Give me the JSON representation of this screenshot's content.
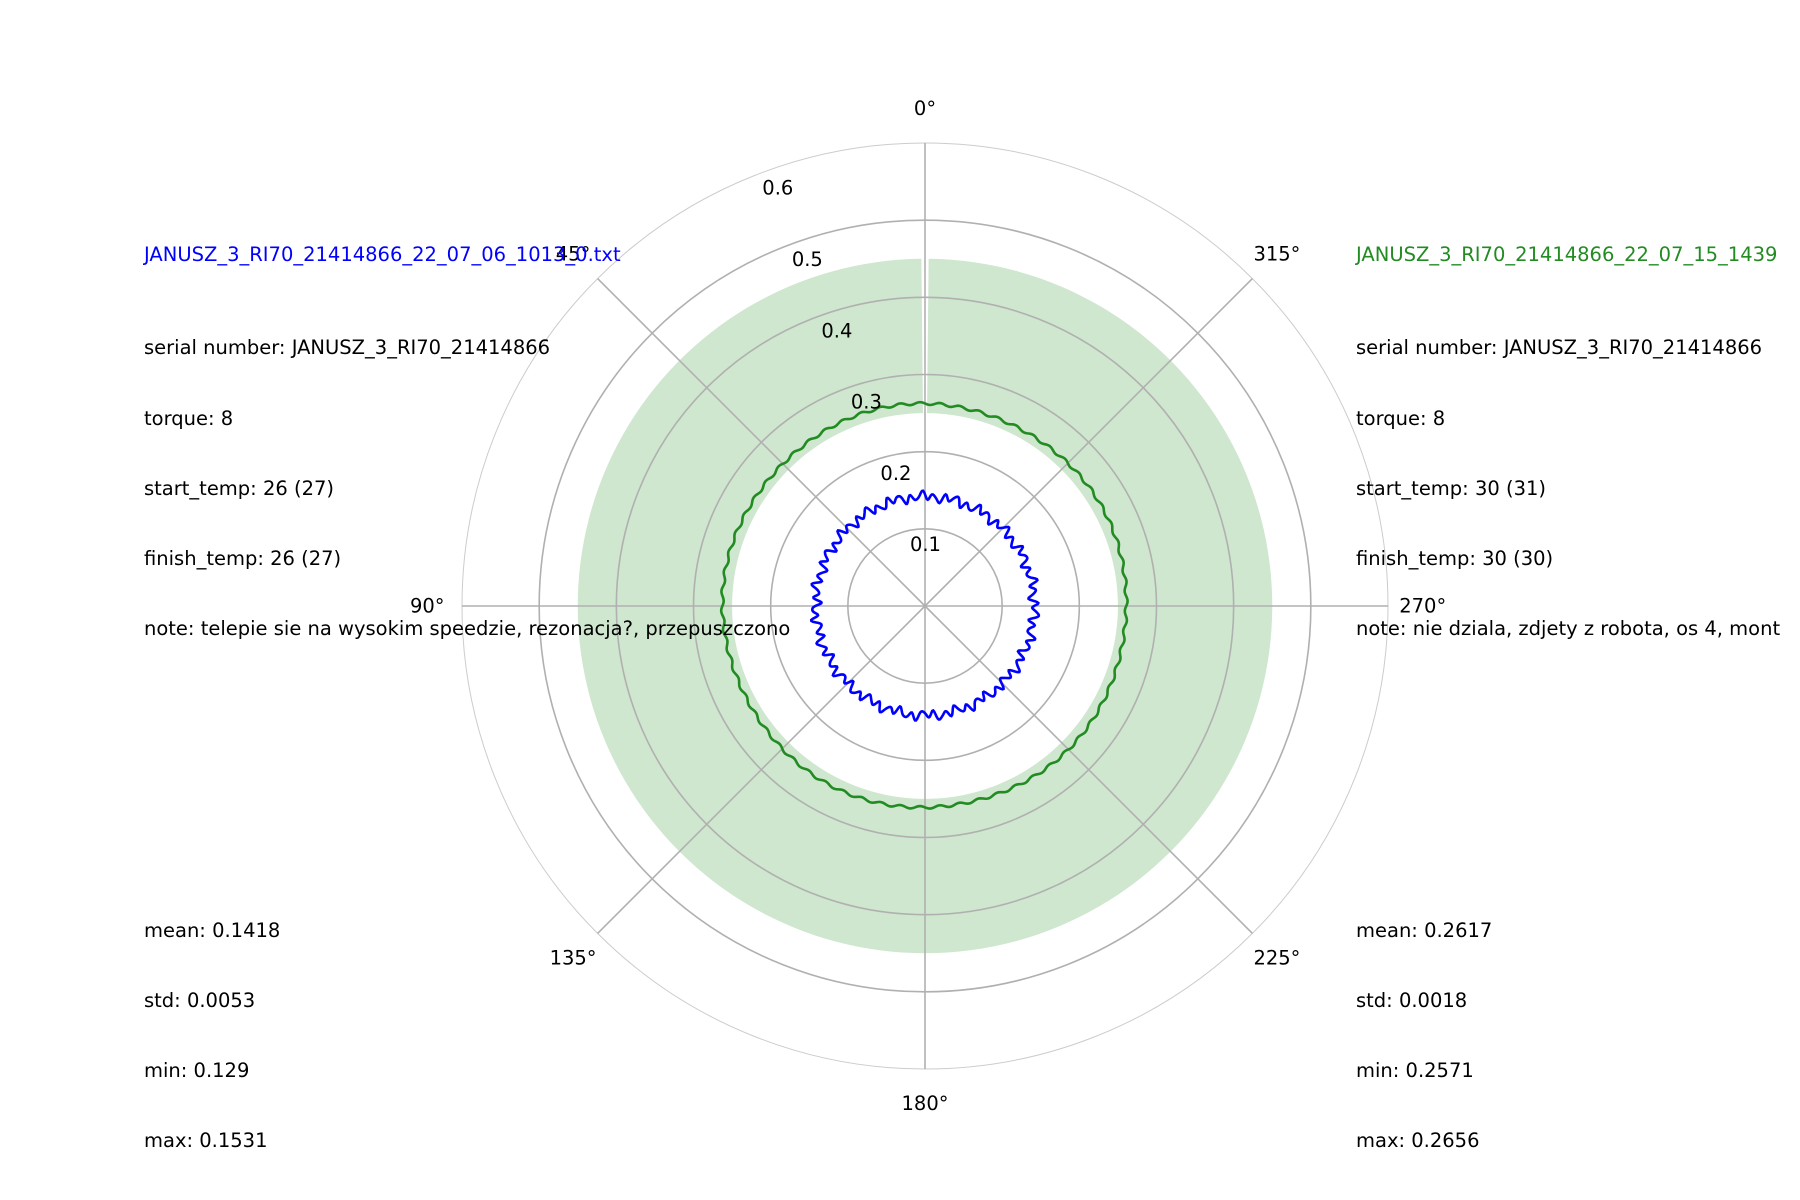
{
  "chart_data": {
    "type": "polar-line",
    "theta_direction": "counterclockwise",
    "theta_zero": "top",
    "angle_ticks": [
      "0°",
      "45°",
      "90°",
      "135°",
      "180°",
      "225°",
      "270°",
      "315°"
    ],
    "radial_ticks": [
      "0.1",
      "0.2",
      "0.3",
      "0.4",
      "0.5",
      "0.6"
    ],
    "radial_tick_values": [
      0.1,
      0.2,
      0.3,
      0.4,
      0.5,
      0.6
    ],
    "rlim": [
      0,
      0.6
    ],
    "grid": true,
    "band": {
      "inner": 0.25,
      "outer": 0.45,
      "color": "#cfe6cf"
    },
    "series": [
      {
        "name": "JANUSZ_3_RI70_21414866_22_07_06_1013_0.txt",
        "color": "#0000ff",
        "mean": 0.1418,
        "std": 0.0053,
        "min": 0.129,
        "max": 0.1531,
        "info": {
          "serial": "serial number: JANUSZ_3_RI70_21414866",
          "torque": "torque: 8",
          "start_temp": "start_temp: 26 (27)",
          "finish_temp": "finish_temp: 26 (27)",
          "note": "note: telepie sie na wysokim speedzie, rezonacja?, przepuszczono"
        },
        "stats": {
          "mean": "mean: 0.1418",
          "std": "std: 0.0053",
          "min": "min: 0.129",
          "max": "max: 0.1531"
        }
      },
      {
        "name": "JANUSZ_3_RI70_21414866_22_07_15_1439",
        "color": "#228b22",
        "mean": 0.2617,
        "std": 0.0018,
        "min": 0.2571,
        "max": 0.2656,
        "info": {
          "serial": "serial number: JANUSZ_3_RI70_21414866",
          "torque": "torque: 8",
          "start_temp": "start_temp: 30 (31)",
          "finish_temp": "finish_temp: 30 (30)",
          "note": "note: nie dziala, zdjety z robota, os 4, mont"
        },
        "stats": {
          "mean": "mean: 0.2617",
          "std": "std: 0.0018",
          "min": "min: 0.2571",
          "max": "max: 0.2656"
        }
      }
    ]
  }
}
